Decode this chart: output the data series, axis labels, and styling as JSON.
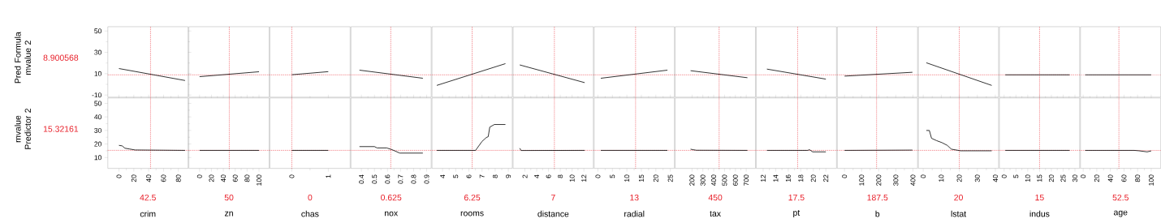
{
  "chart_data": [
    {
      "type": "line",
      "ylabel": "Pred Formula mvalue 2",
      "x": [
        0,
        88.97
      ],
      "values": [
        14.8,
        3.6
      ],
      "color": "#000000",
      "xlim": [
        -15,
        93
      ],
      "ylim": [
        -12,
        54
      ],
      "yticks": [
        -10,
        10,
        30,
        50
      ],
      "tick_labels": "y",
      "ref_lines": [
        {
          "axis": "x",
          "value": 42.5,
          "color": "#e8202a",
          "line_style": "dotted"
        },
        {
          "axis": "y",
          "value": 8.900568,
          "label": "8.900568",
          "color": "#e8202a",
          "line_style": "dotted"
        }
      ]
    },
    {
      "type": "line",
      "x": [
        0,
        100
      ],
      "values": [
        7.2,
        11.8
      ],
      "color": "#000000",
      "xlim": [
        -18,
        117
      ],
      "ylim": [
        -12,
        54
      ],
      "tick_labels": false,
      "ref_lines": [
        {
          "axis": "x",
          "value": 50,
          "color": "#e8202a",
          "line_style": "dotted"
        },
        {
          "axis": "y",
          "value": 8.900568,
          "color": "#e8202a",
          "line_style": "dotted"
        }
      ]
    },
    {
      "type": "line",
      "x": [
        0,
        1
      ],
      "values": [
        9.0,
        11.9
      ],
      "color": "#000000",
      "xlim": [
        -0.6,
        1.6
      ],
      "ylim": [
        -12,
        54
      ],
      "tick_labels": false,
      "ref_lines": [
        {
          "axis": "x",
          "value": 0,
          "color": "#e8202a",
          "line_style": "dotted"
        },
        {
          "axis": "y",
          "value": 8.900568,
          "color": "#e8202a",
          "line_style": "dotted"
        }
      ]
    },
    {
      "type": "line",
      "x": [
        0.385,
        0.871
      ],
      "values": [
        13.3,
        5.7
      ],
      "color": "#000000",
      "xlim": [
        0.32,
        0.935
      ],
      "ylim": [
        -12,
        54
      ],
      "tick_labels": false,
      "ref_lines": [
        {
          "axis": "x",
          "value": 0.625,
          "color": "#e8202a",
          "line_style": "dotted"
        },
        {
          "axis": "y",
          "value": 8.900568,
          "color": "#e8202a",
          "line_style": "dotted"
        }
      ]
    },
    {
      "type": "line",
      "x": [
        3.56,
        8.78
      ],
      "values": [
        -1.0,
        19.4
      ],
      "color": "#000000",
      "xlim": [
        3.2,
        9.3
      ],
      "ylim": [
        -12,
        54
      ],
      "tick_labels": false,
      "ref_lines": [
        {
          "axis": "x",
          "value": 6.25,
          "color": "#e8202a",
          "line_style": "dotted"
        },
        {
          "axis": "y",
          "value": 8.900568,
          "color": "#e8202a",
          "line_style": "dotted"
        }
      ]
    },
    {
      "type": "line",
      "x": [
        1.13,
        12.13
      ],
      "values": [
        18.2,
        1.6
      ],
      "color": "#000000",
      "xlim": [
        0,
        13.6
      ],
      "ylim": [
        -12,
        54
      ],
      "tick_labels": false,
      "ref_lines": [
        {
          "axis": "x",
          "value": 7,
          "color": "#e8202a",
          "line_style": "dotted"
        },
        {
          "axis": "y",
          "value": 8.900568,
          "color": "#e8202a",
          "line_style": "dotted"
        }
      ]
    },
    {
      "type": "line",
      "x": [
        1,
        24
      ],
      "values": [
        5.7,
        13.3
      ],
      "color": "#000000",
      "xlim": [
        -1.3,
        26.4
      ],
      "ylim": [
        -12,
        54
      ],
      "tick_labels": false,
      "ref_lines": [
        {
          "axis": "x",
          "value": 13,
          "color": "#e8202a",
          "line_style": "dotted"
        },
        {
          "axis": "y",
          "value": 8.900568,
          "color": "#e8202a",
          "line_style": "dotted"
        }
      ]
    },
    {
      "type": "line",
      "x": [
        187,
        711
      ],
      "values": [
        12.8,
        6.2
      ],
      "color": "#000000",
      "xlim": [
        45,
        785
      ],
      "ylim": [
        -12,
        54
      ],
      "tick_labels": false,
      "ref_lines": [
        {
          "axis": "x",
          "value": 450,
          "color": "#e8202a",
          "line_style": "dotted"
        },
        {
          "axis": "y",
          "value": 8.900568,
          "color": "#e8202a",
          "line_style": "dotted"
        }
      ]
    },
    {
      "type": "line",
      "x": [
        12.6,
        22
      ],
      "values": [
        14.3,
        4.9
      ],
      "color": "#000000",
      "xlim": [
        10.9,
        23.7
      ],
      "ylim": [
        -12,
        54
      ],
      "tick_labels": false,
      "ref_lines": [
        {
          "axis": "x",
          "value": 17.5,
          "color": "#e8202a",
          "line_style": "dotted"
        },
        {
          "axis": "y",
          "value": 8.900568,
          "color": "#e8202a",
          "line_style": "dotted"
        }
      ]
    },
    {
      "type": "line",
      "x": [
        0.32,
        396.9
      ],
      "values": [
        7.7,
        11.3
      ],
      "color": "#000000",
      "xlim": [
        -42,
        427
      ],
      "ylim": [
        -12,
        54
      ],
      "tick_labels": false,
      "ref_lines": [
        {
          "axis": "x",
          "value": 187.5,
          "color": "#e8202a",
          "line_style": "dotted"
        },
        {
          "axis": "y",
          "value": 8.900568,
          "color": "#e8202a",
          "line_style": "dotted"
        }
      ]
    },
    {
      "type": "line",
      "x": [
        1.73,
        37.97
      ],
      "values": [
        20.2,
        -1.0
      ],
      "color": "#000000",
      "xlim": [
        -2.7,
        41.8
      ],
      "ylim": [
        -12,
        54
      ],
      "tick_labels": false,
      "ref_lines": [
        {
          "axis": "x",
          "value": 20,
          "color": "#e8202a",
          "line_style": "dotted"
        },
        {
          "axis": "y",
          "value": 8.900568,
          "color": "#e8202a",
          "line_style": "dotted"
        }
      ]
    },
    {
      "type": "line",
      "x": [
        0.46,
        27.74
      ],
      "values": [
        8.9,
        8.9
      ],
      "color": "#000000",
      "xlim": [
        -2,
        32
      ],
      "ylim": [
        -12,
        54
      ],
      "tick_labels": false,
      "ref_lines": [
        {
          "axis": "x",
          "value": 15,
          "color": "#e8202a",
          "line_style": "dotted"
        },
        {
          "axis": "y",
          "value": 8.900568,
          "color": "#e8202a",
          "line_style": "dotted"
        }
      ]
    },
    {
      "type": "line",
      "x": [
        2.9,
        100
      ],
      "values": [
        8.9,
        8.9
      ],
      "color": "#000000",
      "xlim": [
        -4,
        114
      ],
      "ylim": [
        -12,
        54
      ],
      "tick_labels": false,
      "ref_lines": [
        {
          "axis": "x",
          "value": 52.5,
          "color": "#e8202a",
          "line_style": "dotted"
        },
        {
          "axis": "y",
          "value": 8.900568,
          "color": "#e8202a",
          "line_style": "dotted"
        }
      ]
    },
    {
      "type": "line",
      "xlabel": "crim",
      "ylabel": "mvalue Predictor 2",
      "x": [
        0,
        4.4,
        8,
        14.5,
        21.8,
        88.97
      ],
      "values": [
        19.0,
        18.6,
        16.9,
        16.3,
        15.6,
        15.3
      ],
      "color": "#000000",
      "xlim": [
        -15,
        93
      ],
      "ylim": [
        2,
        54
      ],
      "xticks": [
        0,
        20,
        40,
        60,
        80
      ],
      "yticks": [
        10,
        20,
        30,
        40,
        50
      ],
      "ref_lines": [
        {
          "axis": "x",
          "value": 42.5,
          "label": "42.5",
          "color": "#e8202a",
          "line_style": "dotted"
        },
        {
          "axis": "y",
          "value": 15.32161,
          "label": "15.32161",
          "color": "#e8202a",
          "line_style": "dotted"
        }
      ]
    },
    {
      "type": "line",
      "xlabel": "zn",
      "x": [
        0,
        100
      ],
      "values": [
        15.3,
        15.3
      ],
      "color": "#000000",
      "xlim": [
        -18,
        117
      ],
      "ylim": [
        2,
        54
      ],
      "xticks": [
        0,
        20,
        40,
        60,
        80,
        100
      ],
      "tick_labels": "x",
      "ref_lines": [
        {
          "axis": "x",
          "value": 50,
          "label": "50",
          "color": "#e8202a",
          "line_style": "dotted"
        },
        {
          "axis": "y",
          "value": 15.32161,
          "color": "#e8202a",
          "line_style": "dotted"
        }
      ]
    },
    {
      "type": "line",
      "xlabel": "chas",
      "x": [
        0,
        1
      ],
      "values": [
        15.3,
        15.3
      ],
      "color": "#000000",
      "xlim": [
        -0.6,
        1.6
      ],
      "ylim": [
        2,
        54
      ],
      "xticks": [
        0,
        1
      ],
      "tick_labels": "x",
      "ref_lines": [
        {
          "axis": "x",
          "value": 0,
          "label": "0",
          "color": "#e8202a",
          "line_style": "dotted"
        },
        {
          "axis": "y",
          "value": 15.32161,
          "color": "#e8202a",
          "line_style": "dotted"
        }
      ]
    },
    {
      "type": "line",
      "xlabel": "nox",
      "x": [
        0.385,
        0.5,
        0.52,
        0.594,
        0.635,
        0.694,
        0.871
      ],
      "values": [
        18.1,
        18.1,
        17.1,
        17.1,
        15.8,
        13.3,
        13.3
      ],
      "color": "#000000",
      "xlim": [
        0.32,
        0.935
      ],
      "ylim": [
        2,
        54
      ],
      "xticks": [
        0.4,
        0.5,
        0.6,
        0.7,
        0.8,
        0.9
      ],
      "tick_labels": "x",
      "ref_lines": [
        {
          "axis": "x",
          "value": 0.625,
          "label": "0.625",
          "color": "#e8202a",
          "line_style": "dotted"
        },
        {
          "axis": "y",
          "value": 15.32161,
          "color": "#e8202a",
          "line_style": "dotted"
        }
      ]
    },
    {
      "type": "line",
      "xlabel": "rooms",
      "x": [
        3.56,
        6.51,
        7.0,
        7.33,
        7.47,
        7.59,
        7.94,
        8.78
      ],
      "values": [
        15.3,
        15.3,
        21.9,
        24.8,
        25.4,
        32.5,
        34.4,
        34.4
      ],
      "color": "#000000",
      "xlim": [
        3.2,
        9.3
      ],
      "ylim": [
        2,
        54
      ],
      "xticks": [
        4,
        5,
        6,
        7,
        8,
        9
      ],
      "tick_labels": "x",
      "ref_lines": [
        {
          "axis": "x",
          "value": 6.25,
          "label": "6.25",
          "color": "#e8202a",
          "line_style": "dotted"
        },
        {
          "axis": "y",
          "value": 15.32161,
          "color": "#e8202a",
          "line_style": "dotted"
        }
      ]
    },
    {
      "type": "line",
      "xlabel": "distance",
      "x": [
        1.13,
        1.36,
        12.13
      ],
      "values": [
        16.9,
        15.2,
        15.3
      ],
      "color": "#000000",
      "xlim": [
        0,
        13.6
      ],
      "ylim": [
        2,
        54
      ],
      "xticks": [
        2,
        4,
        6,
        8,
        10,
        12
      ],
      "tick_labels": "x",
      "ref_lines": [
        {
          "axis": "x",
          "value": 7,
          "label": "7",
          "color": "#e8202a",
          "line_style": "dotted"
        },
        {
          "axis": "y",
          "value": 15.32161,
          "color": "#e8202a",
          "line_style": "dotted"
        }
      ]
    },
    {
      "type": "line",
      "xlabel": "radial",
      "x": [
        1,
        24
      ],
      "values": [
        15.3,
        15.3
      ],
      "color": "#000000",
      "xlim": [
        -1.3,
        26.4
      ],
      "ylim": [
        2,
        54
      ],
      "xticks": [
        0,
        5,
        10,
        15,
        20,
        25
      ],
      "tick_labels": "x",
      "ref_lines": [
        {
          "axis": "x",
          "value": 13,
          "label": "13",
          "color": "#e8202a",
          "line_style": "dotted"
        },
        {
          "axis": "y",
          "value": 15.32161,
          "color": "#e8202a",
          "line_style": "dotted"
        }
      ]
    },
    {
      "type": "line",
      "xlabel": "tax",
      "x": [
        187,
        210,
        240,
        711
      ],
      "values": [
        16.2,
        15.8,
        15.4,
        15.3
      ],
      "color": "#000000",
      "xlim": [
        45,
        785
      ],
      "ylim": [
        2,
        54
      ],
      "xticks": [
        200,
        300,
        400,
        500,
        600,
        700
      ],
      "tick_labels": "x",
      "ref_lines": [
        {
          "axis": "x",
          "value": 450,
          "label": "450",
          "color": "#e8202a",
          "line_style": "dotted"
        },
        {
          "axis": "y",
          "value": 15.32161,
          "color": "#e8202a",
          "line_style": "dotted"
        }
      ]
    },
    {
      "type": "line",
      "xlabel": "pt",
      "x": [
        12.6,
        19.1,
        19.4,
        19.9,
        22
      ],
      "values": [
        15.3,
        15.3,
        15.8,
        14.2,
        14.2
      ],
      "color": "#000000",
      "xlim": [
        10.9,
        23.7
      ],
      "ylim": [
        2,
        54
      ],
      "xticks": [
        12,
        14,
        16,
        18,
        20,
        22
      ],
      "tick_labels": "x",
      "ref_lines": [
        {
          "axis": "x",
          "value": 17.5,
          "label": "17.5",
          "color": "#e8202a",
          "line_style": "dotted"
        },
        {
          "axis": "y",
          "value": 15.32161,
          "color": "#e8202a",
          "line_style": "dotted"
        }
      ]
    },
    {
      "type": "line",
      "xlabel": "b",
      "x": [
        0.32,
        396.9
      ],
      "values": [
        15.3,
        15.5
      ],
      "color": "#000000",
      "xlim": [
        -42,
        427
      ],
      "ylim": [
        2,
        54
      ],
      "xticks": [
        0,
        100,
        200,
        300,
        400
      ],
      "tick_labels": "x",
      "ref_lines": [
        {
          "axis": "x",
          "value": 187.5,
          "label": "187.5",
          "color": "#e8202a",
          "line_style": "dotted"
        },
        {
          "axis": "y",
          "value": 15.32161,
          "color": "#e8202a",
          "line_style": "dotted"
        }
      ]
    },
    {
      "type": "line",
      "xlabel": "lstat",
      "x": [
        1.73,
        3.4,
        4.6,
        7.4,
        10.4,
        13.3,
        15.6,
        20.7,
        37.97
      ],
      "values": [
        30.0,
        30.0,
        24.2,
        22.5,
        21.0,
        19.0,
        16.2,
        15.0,
        15.0
      ],
      "color": "#000000",
      "xlim": [
        -2.7,
        41.8
      ],
      "ylim": [
        2,
        54
      ],
      "xticks": [
        0,
        10,
        20,
        30,
        40
      ],
      "tick_labels": "x",
      "ref_lines": [
        {
          "axis": "x",
          "value": 20,
          "label": "20",
          "color": "#e8202a",
          "line_style": "dotted"
        },
        {
          "axis": "y",
          "value": 15.32161,
          "color": "#e8202a",
          "line_style": "dotted"
        }
      ]
    },
    {
      "type": "line",
      "xlabel": "indus",
      "x": [
        0.46,
        27.74
      ],
      "values": [
        15.3,
        15.3
      ],
      "color": "#000000",
      "xlim": [
        -2,
        32
      ],
      "ylim": [
        2,
        54
      ],
      "xticks": [
        0,
        5,
        10,
        15,
        20,
        25,
        30
      ],
      "tick_labels": "x",
      "ref_lines": [
        {
          "axis": "x",
          "value": 15,
          "label": "15",
          "color": "#e8202a",
          "line_style": "dotted"
        },
        {
          "axis": "y",
          "value": 15.32161,
          "color": "#e8202a",
          "line_style": "dotted"
        }
      ]
    },
    {
      "type": "line",
      "xlabel": "age",
      "x": [
        2.9,
        75,
        82,
        94,
        100
      ],
      "values": [
        15.3,
        15.3,
        15.0,
        14.2,
        14.9
      ],
      "color": "#000000",
      "xlim": [
        -4,
        114
      ],
      "ylim": [
        2,
        54
      ],
      "xticks": [
        0,
        20,
        40,
        60,
        80,
        100
      ],
      "tick_labels": "x",
      "ref_lines": [
        {
          "axis": "x",
          "value": 52.5,
          "label": "52.5",
          "color": "#e8202a",
          "line_style": "dotted"
        },
        {
          "axis": "y",
          "value": 15.32161,
          "color": "#e8202a",
          "line_style": "dotted"
        }
      ]
    }
  ]
}
